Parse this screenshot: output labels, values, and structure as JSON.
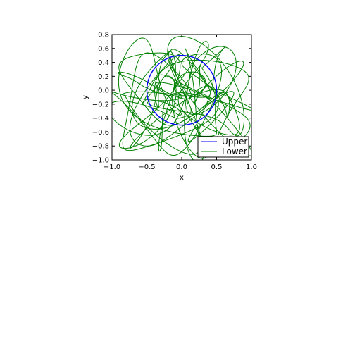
{
  "chart_data": {
    "type": "line",
    "title": "",
    "xlabel": "x",
    "ylabel": "y",
    "xlim": [
      -1.0,
      1.0
    ],
    "ylim": [
      -1.0,
      0.8
    ],
    "xticks": [
      -1.0,
      -0.5,
      0.0,
      0.5,
      1.0
    ],
    "xtick_labels": [
      "−1.0",
      "−0.5",
      "0.0",
      "0.5",
      "1.0"
    ],
    "yticks": [
      0.8,
      0.6,
      0.4,
      0.2,
      0.0,
      -0.2,
      -0.4,
      -0.6,
      -0.8,
      -1.0
    ],
    "ytick_labels": [
      "0.8",
      "0.6",
      "0.4",
      "0.2",
      "0.0",
      "−0.2",
      "−0.4",
      "−0.6",
      "−0.8",
      "−1.0"
    ],
    "aspect": "equal",
    "grid": false,
    "legend_position": "bottom-right",
    "series": [
      {
        "name": "Upper",
        "color": "#0000ff",
        "shape": "circle",
        "center": [
          0.0,
          0.0
        ],
        "radius": 0.5
      },
      {
        "name": "Lower",
        "color": "#008000",
        "shape": "chaotic-trajectory",
        "approximate_range_x": [
          -1.0,
          1.0
        ],
        "approximate_range_y": [
          -1.0,
          0.8
        ]
      }
    ]
  }
}
